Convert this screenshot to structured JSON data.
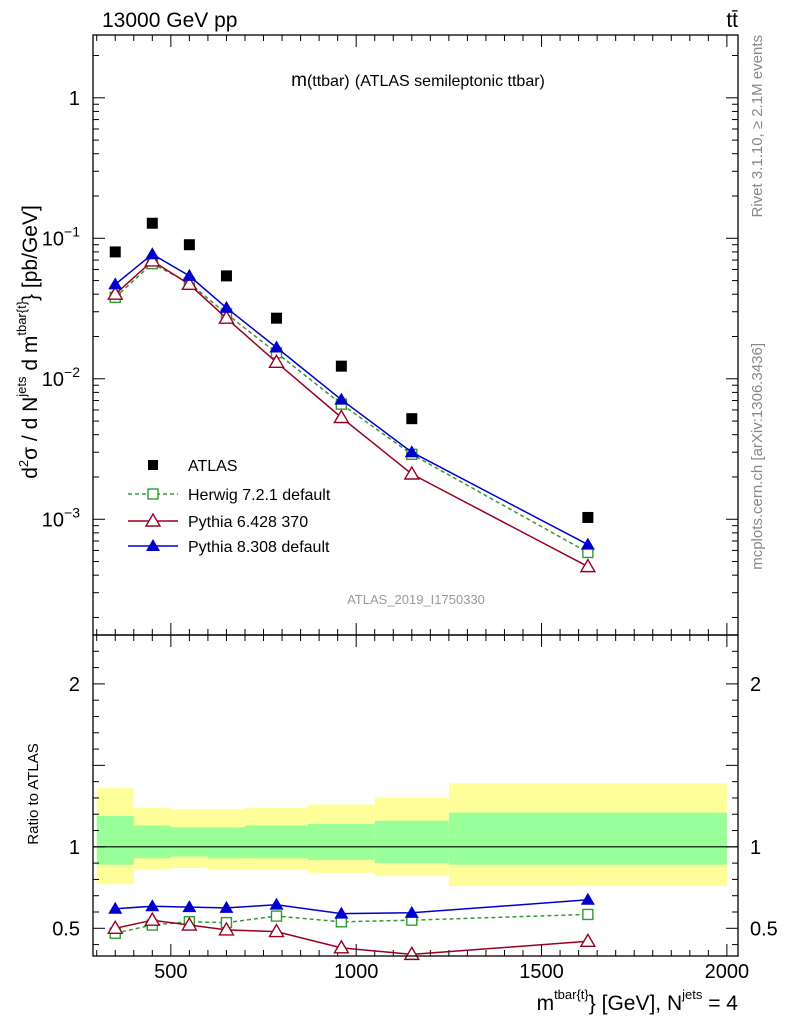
{
  "header": {
    "energy_label": "13000 GeV pp",
    "process_label": "tt̄"
  },
  "side_labels": {
    "rivet": "Rivet 3.1.10, ≥ 2.1M events",
    "mcplots": "mcplots.cern.ch [arXiv:1306.3436]"
  },
  "chart_data": [
    {
      "type": "scatter",
      "title": "m(ttbar) (ATLAS semileptonic ttbar)",
      "title_main": "m",
      "title_paren": "(ttbar)",
      "title_rest": "(ATLAS semileptonic ttbar)",
      "analysis_id": "ATLAS_2019_I1750330",
      "yscale": "log",
      "ylabel": "d²σ / d N^jets d m^tbar{t} [pb/GeV]",
      "ylabel_parts": [
        "d",
        "2",
        "σ  /  d N",
        "jets",
        " d m",
        "tbar{t}",
        "} [pb/GeV]"
      ],
      "xlim": [
        290,
        2030
      ],
      "ylim": [
        0.00015,
        2.8
      ],
      "y_tick_labels": [
        {
          "value": 1,
          "base": "1",
          "exp": ""
        },
        {
          "value": 0.1,
          "base": "10",
          "exp": "−1"
        },
        {
          "value": 0.01,
          "base": "10",
          "exp": "−2"
        },
        {
          "value": 0.001,
          "base": "10",
          "exp": "−3"
        }
      ],
      "legend_position": "lower-left",
      "series": [
        {
          "name": "ATLAS",
          "color": "#000000",
          "marker": "filled-square",
          "line": "none",
          "x": [
            350,
            450,
            550,
            650,
            785,
            960,
            1150,
            1625
          ],
          "values": [
            0.08,
            0.128,
            0.09,
            0.054,
            0.027,
            0.0123,
            0.0052,
            0.00103
          ]
        },
        {
          "name": "Herwig 7.2.1 default",
          "color": "#339933",
          "marker": "open-square",
          "line": "dashed",
          "x": [
            350,
            450,
            550,
            650,
            785,
            960,
            1150,
            1625
          ],
          "values": [
            0.038,
            0.066,
            0.048,
            0.029,
            0.0153,
            0.0066,
            0.0029,
            0.00058
          ]
        },
        {
          "name": "Pythia 6.428 370",
          "color": "#990022",
          "marker": "open-triangle",
          "line": "solid",
          "x": [
            350,
            450,
            550,
            650,
            785,
            960,
            1150,
            1625
          ],
          "values": [
            0.04,
            0.069,
            0.047,
            0.027,
            0.0131,
            0.0053,
            0.0021,
            0.00046
          ]
        },
        {
          "name": "Pythia 8.308 default",
          "color": "#0000cc",
          "marker": "filled-triangle",
          "line": "solid",
          "x": [
            350,
            450,
            550,
            650,
            785,
            960,
            1150,
            1625
          ],
          "values": [
            0.047,
            0.077,
            0.054,
            0.032,
            0.0167,
            0.0071,
            0.003,
            0.00066
          ]
        }
      ]
    },
    {
      "type": "line",
      "title": "",
      "ylabel": "Ratio to ATLAS",
      "xlabel": "m^tbar{t}} [GeV], N^jets = 4",
      "xlabel_parts": [
        "m",
        "tbar{t}",
        "} [GeV], N",
        "jets",
        " = 4"
      ],
      "xlim": [
        290,
        2030
      ],
      "ylim": [
        0.33,
        2.3
      ],
      "x_ticks": [
        500,
        1000,
        1500,
        2000
      ],
      "x_tick_labels": [
        "500",
        "1000",
        "1500",
        "2000"
      ],
      "y_ticks": [
        0.5,
        1,
        2
      ],
      "y_tick_labels": [
        "0.5",
        "1",
        "2"
      ],
      "uncertainty_bands": [
        {
          "x0": 300,
          "x1": 400,
          "inner": [
            0.89,
            1.19
          ],
          "outer": [
            0.77,
            1.36
          ]
        },
        {
          "x0": 400,
          "x1": 500,
          "inner": [
            0.93,
            1.13
          ],
          "outer": [
            0.86,
            1.24
          ]
        },
        {
          "x0": 500,
          "x1": 600,
          "inner": [
            0.94,
            1.12
          ],
          "outer": [
            0.87,
            1.23
          ]
        },
        {
          "x0": 600,
          "x1": 700,
          "inner": [
            0.93,
            1.12
          ],
          "outer": [
            0.86,
            1.23
          ]
        },
        {
          "x0": 700,
          "x1": 870,
          "inner": [
            0.93,
            1.13
          ],
          "outer": [
            0.86,
            1.24
          ]
        },
        {
          "x0": 870,
          "x1": 1050,
          "inner": [
            0.92,
            1.14
          ],
          "outer": [
            0.84,
            1.26
          ]
        },
        {
          "x0": 1050,
          "x1": 1250,
          "inner": [
            0.9,
            1.16
          ],
          "outer": [
            0.82,
            1.3
          ]
        },
        {
          "x0": 1250,
          "x1": 2000,
          "inner": [
            0.89,
            1.21
          ],
          "outer": [
            0.76,
            1.39
          ]
        }
      ],
      "series": [
        {
          "name": "Herwig 7.2.1 default",
          "color": "#339933",
          "marker": "open-square",
          "line": "dashed",
          "x": [
            350,
            450,
            550,
            650,
            785,
            960,
            1150,
            1625
          ],
          "values": [
            0.47,
            0.52,
            0.54,
            0.535,
            0.575,
            0.54,
            0.55,
            0.585
          ]
        },
        {
          "name": "Pythia 6.428 370",
          "color": "#990022",
          "marker": "open-triangle",
          "line": "solid",
          "x": [
            350,
            450,
            550,
            650,
            785,
            960,
            1150,
            1625
          ],
          "values": [
            0.5,
            0.55,
            0.52,
            0.49,
            0.48,
            0.38,
            0.34,
            0.42
          ]
        },
        {
          "name": "Pythia 8.308 default",
          "color": "#0000cc",
          "marker": "filled-triangle",
          "line": "solid",
          "x": [
            350,
            450,
            550,
            650,
            785,
            960,
            1150,
            1625
          ],
          "values": [
            0.62,
            0.635,
            0.63,
            0.625,
            0.645,
            0.59,
            0.595,
            0.675
          ]
        }
      ]
    }
  ]
}
